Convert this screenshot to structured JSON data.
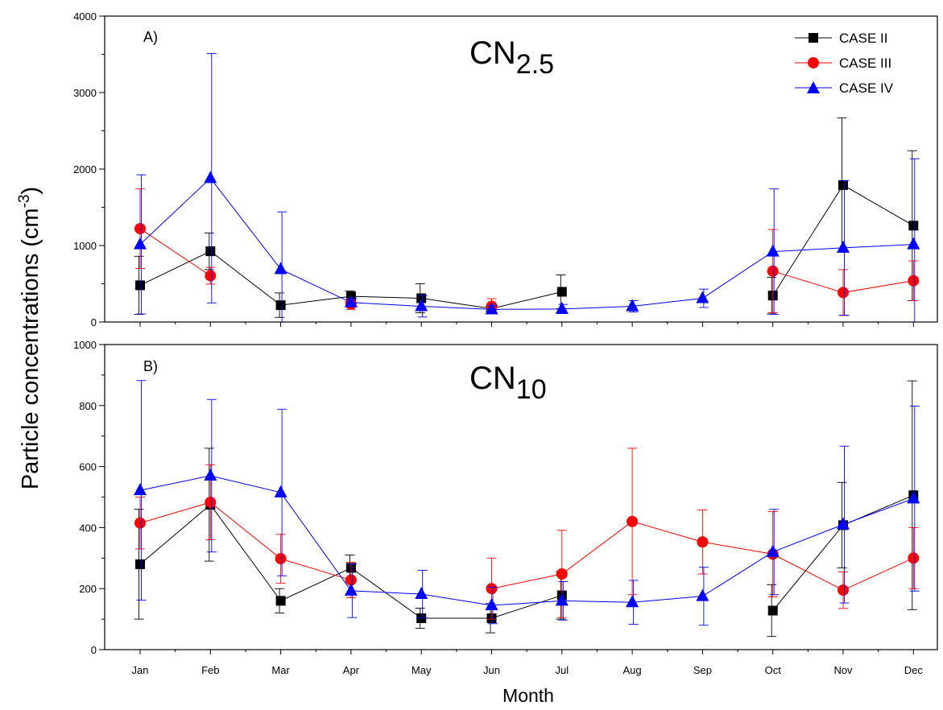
{
  "chart_data": [
    {
      "type": "line",
      "panel_label": "A)",
      "title": {
        "main": "CN",
        "sub": "2.5"
      },
      "xlabel": "Month",
      "ylabel": {
        "main": "Particle concentrations (cm",
        "sup": "-3",
        "tail": ")"
      },
      "categories": [
        "Jan",
        "Feb",
        "Mar",
        "Apr",
        "May",
        "Jun",
        "Jul",
        "Aug",
        "Sep",
        "Oct",
        "Nov",
        "Dec"
      ],
      "ylim": [
        0,
        4000
      ],
      "yticks": [
        "0",
        "1000",
        "2000",
        "3000",
        "4000"
      ],
      "legend_position": "top-right",
      "series": [
        {
          "name": "CASE II",
          "color": "#000000",
          "marker": "square",
          "values": [
            480,
            925,
            220,
            335,
            310,
            175,
            395,
            null,
            null,
            345,
            1790,
            1260
          ],
          "err": [
            380,
            240,
            160,
            70,
            190,
            30,
            220,
            null,
            null,
            240,
            880,
            980
          ]
        },
        {
          "name": "CASE III",
          "color": "#ff0000",
          "marker": "circle",
          "values": [
            1220,
            605,
            null,
            235,
            null,
            205,
            null,
            null,
            null,
            665,
            385,
            540
          ],
          "err": [
            520,
            110,
            null,
            70,
            null,
            100,
            null,
            null,
            null,
            545,
            300,
            260
          ]
        },
        {
          "name": "CASE IV",
          "color": "#0000ff",
          "marker": "triangle",
          "values": [
            1015,
            1880,
            690,
            255,
            205,
            165,
            170,
            205,
            310,
            920,
            970,
            1015
          ],
          "err": [
            910,
            1630,
            750,
            50,
            140,
            50,
            60,
            75,
            120,
            820,
            880,
            1120
          ]
        }
      ]
    },
    {
      "type": "line",
      "panel_label": "B)",
      "title": {
        "main": "CN",
        "sub": "10"
      },
      "xlabel": "Month",
      "categories": [
        "Jan",
        "Feb",
        "Mar",
        "Apr",
        "May",
        "Jun",
        "Jul",
        "Aug",
        "Sep",
        "Oct",
        "Nov",
        "Dec"
      ],
      "ylim": [
        0,
        1000
      ],
      "yticks": [
        "0",
        "200",
        "400",
        "600",
        "800",
        "1000"
      ],
      "series": [
        {
          "name": "CASE II",
          "color": "#000000",
          "marker": "square",
          "values": [
            280,
            475,
            160,
            268,
            103,
            103,
            178,
            null,
            null,
            128,
            408,
            506
          ],
          "err": [
            180,
            185,
            40,
            42,
            33,
            48,
            78,
            null,
            null,
            85,
            140,
            375
          ]
        },
        {
          "name": "CASE III",
          "color": "#ff0000",
          "marker": "circle",
          "values": [
            415,
            483,
            298,
            228,
            null,
            200,
            248,
            420,
            353,
            313,
            195,
            300
          ],
          "err": [
            85,
            123,
            80,
            58,
            null,
            100,
            143,
            240,
            105,
            140,
            60,
            100
          ]
        },
        {
          "name": "CASE IV",
          "color": "#0000ff",
          "marker": "triangle",
          "values": [
            522,
            570,
            515,
            193,
            182,
            145,
            160,
            155,
            175,
            320,
            410,
            495
          ],
          "err": [
            360,
            250,
            273,
            88,
            78,
            60,
            63,
            72,
            95,
            140,
            257,
            303
          ]
        }
      ]
    }
  ]
}
